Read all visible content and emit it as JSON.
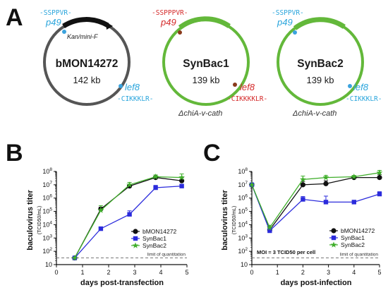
{
  "panels": {
    "a": "A",
    "b": "B",
    "c": "C"
  },
  "colors": {
    "black": "#111111",
    "blue": "#2b2bdc",
    "green": "#3fae2a",
    "circle_gray": "#555555",
    "circle_green": "#63b83a",
    "seq_blue": "#2aa5dc",
    "seq_red": "#d42a2a",
    "dot_blue": "#3ba3de",
    "dot_brown": "#8a3a1c"
  },
  "plasmids": [
    {
      "name": "bMON14272",
      "size": "142 kb",
      "cassette": "Kan/mini-F",
      "deletion": "",
      "top_seq": "-SSPPVR-",
      "top_site": "p49",
      "top_color": "blue",
      "bottom_seq": "-CIKKKLR-",
      "bottom_site": "lef8",
      "bottom_color": "blue"
    },
    {
      "name": "SynBac1",
      "size": "139 kb",
      "cassette": "",
      "deletion": "ΔchiA-v-cath",
      "top_seq": "-SSPPPVR-",
      "top_site": "p49",
      "top_color": "red",
      "bottom_seq": "-CIKKKKLR-",
      "bottom_site": "lef8",
      "bottom_color": "red"
    },
    {
      "name": "SynBac2",
      "size": "139 kb",
      "cassette": "",
      "deletion": "ΔchiA-v-cath",
      "top_seq": "-SSPPVR-",
      "top_site": "p49",
      "top_color": "blue",
      "bottom_seq": "-CIKKKLR-",
      "bottom_site": "lef8",
      "bottom_color": "blue"
    }
  ],
  "chart_data": [
    {
      "type": "line",
      "panel": "B",
      "xlabel": "days post-transfection",
      "ylabel": "baculovirus titer",
      "ylabel_sub": "(TCID50/mL)",
      "xlim": [
        0,
        5
      ],
      "xticks": [
        "0",
        "1",
        "2",
        "3",
        "4",
        "5"
      ],
      "y_scale": "log",
      "ylim": [
        10,
        100000000
      ],
      "yticks": [
        "10",
        "10^2",
        "10^3",
        "10^4",
        "10^5",
        "10^6",
        "10^7",
        "10^8"
      ],
      "limit_of_quantitation": 31.6,
      "limit_label": "limit of quantitation",
      "legend_position": "lower-right",
      "series": [
        {
          "name": "bMON14272",
          "marker": "circle",
          "color": "black",
          "x": [
            0.7,
            1.7,
            2.8,
            3.8,
            4.8
          ],
          "y": [
            31.6,
            150000,
            8000000,
            35000000,
            20000000
          ],
          "err": [
            0,
            60000,
            3000000,
            10000000,
            15000000
          ]
        },
        {
          "name": "SynBac1",
          "marker": "square",
          "color": "blue",
          "x": [
            0.7,
            1.7,
            2.8,
            3.8,
            4.8
          ],
          "y": [
            31.6,
            5000,
            60000,
            6000000,
            8000000
          ],
          "err": [
            0,
            1500,
            50000,
            3000000,
            3000000
          ]
        },
        {
          "name": "SynBac2",
          "marker": "star",
          "color": "green",
          "x": [
            0.7,
            1.7,
            2.8,
            3.8,
            4.8
          ],
          "y": [
            31.6,
            120000,
            10000000,
            40000000,
            35000000
          ],
          "err": [
            0,
            150000,
            5000000,
            15000000,
            30000000
          ]
        }
      ]
    },
    {
      "type": "line",
      "panel": "C",
      "xlabel": "days post-infection",
      "ylabel": "baculovirus titer",
      "ylabel_sub": "(TCID50/mL)",
      "xlim": [
        0,
        5
      ],
      "xticks": [
        "0",
        "1",
        "2",
        "3",
        "4",
        "5"
      ],
      "y_scale": "log",
      "ylim": [
        10,
        100000000
      ],
      "yticks": [
        "10",
        "10^2",
        "10^3",
        "10^4",
        "10^5",
        "10^6",
        "10^7",
        "10^8"
      ],
      "limit_of_quantitation": 31.6,
      "limit_label": "limit of quantitation",
      "annotation": "MOI = 3 TCID50 per cell",
      "legend_position": "lower-right",
      "series": [
        {
          "name": "bMON14272",
          "marker": "circle",
          "color": "black",
          "x": [
            0,
            0.7,
            2,
            2.9,
            4,
            5
          ],
          "y": [
            10000000,
            4000,
            10000000,
            12000000,
            35000000,
            35000000
          ],
          "err": [
            0,
            2000,
            8000000,
            8000000,
            10000000,
            25000000
          ]
        },
        {
          "name": "SynBac1",
          "marker": "square",
          "color": "blue",
          "x": [
            0,
            0.7,
            2,
            2.9,
            4,
            5
          ],
          "y": [
            10000000,
            3500,
            800000,
            500000,
            500000,
            2000000
          ],
          "err": [
            0,
            2000,
            500000,
            900000,
            0,
            1000000
          ]
        },
        {
          "name": "SynBac2",
          "marker": "star",
          "color": "green",
          "x": [
            0,
            0.7,
            2,
            2.9,
            4,
            5
          ],
          "y": [
            10000000,
            6000,
            25000000,
            35000000,
            40000000,
            80000000
          ],
          "err": [
            0,
            3000,
            20000000,
            15000000,
            10000000,
            40000000
          ]
        }
      ]
    }
  ]
}
